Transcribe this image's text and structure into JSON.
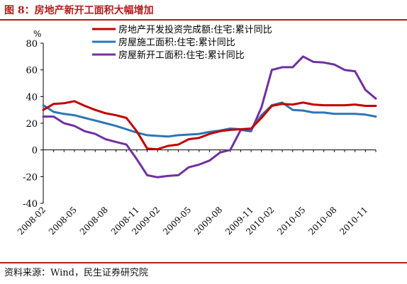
{
  "figure": {
    "title": "图 8：房地产新开工面积大幅增加",
    "source": "资料来源：Wind，民生证券研究院"
  },
  "chart_data": {
    "type": "line",
    "ylabel": "%",
    "ylim": [
      -40,
      80
    ],
    "yticks": [
      -40,
      -20,
      0,
      20,
      40,
      60,
      80
    ],
    "grid": false,
    "legend_position": "top",
    "x": [
      "2008-02",
      "2008-03",
      "2008-04",
      "2008-05",
      "2008-06",
      "2008-07",
      "2008-08",
      "2008-09",
      "2008-10",
      "2008-11",
      "2008-12",
      "2009-02",
      "2009-03",
      "2009-04",
      "2009-05",
      "2009-06",
      "2009-07",
      "2009-08",
      "2009-09",
      "2009-10",
      "2009-11",
      "2009-12",
      "2010-02",
      "2010-03",
      "2010-04",
      "2010-05",
      "2010-06",
      "2010-07",
      "2010-08",
      "2010-09",
      "2010-10",
      "2010-11",
      "2010-12"
    ],
    "xtick_labels": [
      "2008-02",
      "2008-05",
      "2008-08",
      "2008-11",
      "2009-02",
      "2009-05",
      "2009-08",
      "2009-11",
      "2010-02",
      "2010-05",
      "2010-08",
      "2010-11"
    ],
    "series": [
      {
        "name": "房地产开发投资完成额:住宅:累计同比",
        "color": "#c00000",
        "values": [
          30.0,
          34.5,
          35.0,
          36.5,
          33.0,
          30.0,
          27.5,
          26.0,
          24.0,
          14.0,
          1.0,
          0.5,
          3.0,
          4.0,
          8.0,
          9.0,
          12.0,
          14.0,
          15.0,
          15.5,
          16.0,
          24.0,
          33.0,
          34.5,
          34.0,
          35.5,
          34.0,
          33.5,
          33.5,
          33.5,
          34.0,
          33.0,
          33.0
        ]
      },
      {
        "name": "房屋施工面积:住宅:累计同比",
        "color": "#2e75b6",
        "values": [
          33.5,
          28.5,
          27.0,
          26.0,
          24.0,
          22.0,
          20.0,
          18.0,
          15.5,
          13.0,
          11.0,
          10.5,
          10.0,
          11.0,
          11.5,
          12.0,
          13.5,
          14.5,
          16.0,
          15.5,
          15.0,
          26.0,
          33.5,
          35.5,
          30.0,
          29.5,
          28.0,
          28.0,
          27.0,
          27.0,
          27.0,
          26.5,
          25.0
        ]
      },
      {
        "name": "房屋新开工面积:住宅:累计同比",
        "color": "#7030a0",
        "values": [
          25.0,
          25.0,
          20.0,
          18.0,
          14.0,
          12.0,
          8.0,
          6.0,
          4.0,
          -7.0,
          -19.0,
          -20.5,
          -19.5,
          -19.0,
          -13.0,
          -11.0,
          -8.0,
          -2.0,
          0.0,
          15.0,
          14.0,
          32.0,
          60.0,
          62.0,
          62.0,
          70.0,
          66.0,
          65.5,
          64.0,
          60.0,
          59.0,
          45.0,
          38.5
        ]
      }
    ]
  }
}
